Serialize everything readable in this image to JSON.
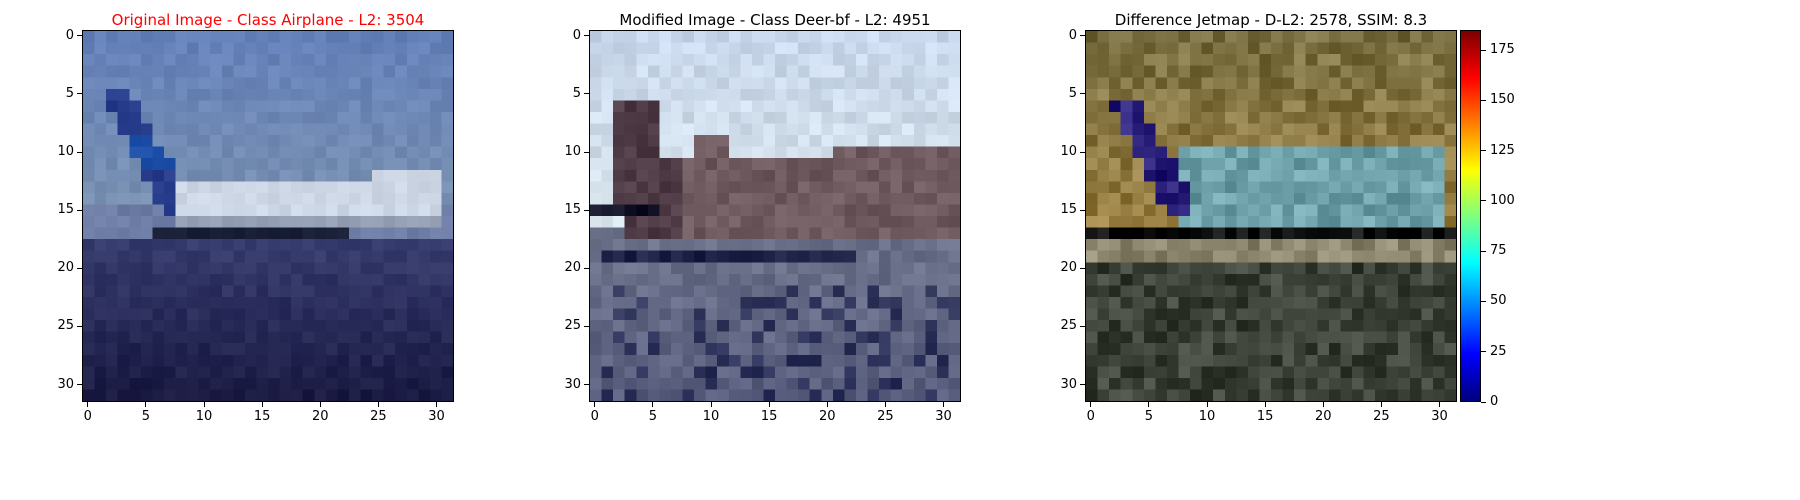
{
  "panels": [
    {
      "title": "Original Image - Class Airplane - L2: 3504",
      "title_color": "#ff0000",
      "x_ticks": [
        "0",
        "5",
        "10",
        "15",
        "20",
        "25",
        "30"
      ],
      "y_ticks": [
        "0",
        "5",
        "10",
        "15",
        "20",
        "25",
        "30"
      ],
      "image_kind": "airplane-original"
    },
    {
      "title": "Modified Image - Class Deer-bf - L2: 4951",
      "title_color": "#000000",
      "x_ticks": [
        "0",
        "5",
        "10",
        "15",
        "20",
        "25",
        "30"
      ],
      "y_ticks": [
        "0",
        "5",
        "10",
        "15",
        "20",
        "25",
        "30"
      ],
      "image_kind": "deer-modified"
    },
    {
      "title": "Difference Jetmap - D-L2: 2578, SSIM: 8.3",
      "title_color": "#000000",
      "x_ticks": [
        "0",
        "5",
        "10",
        "15",
        "20",
        "25",
        "30"
      ],
      "y_ticks": [
        "0",
        "5",
        "10",
        "15",
        "20",
        "25",
        "30"
      ],
      "image_kind": "difference-jetmap"
    }
  ],
  "colorbar": {
    "ticks": [
      "0",
      "25",
      "50",
      "75",
      "100",
      "125",
      "150",
      "175"
    ],
    "range": [
      0,
      185
    ],
    "colormap": "jet"
  }
}
